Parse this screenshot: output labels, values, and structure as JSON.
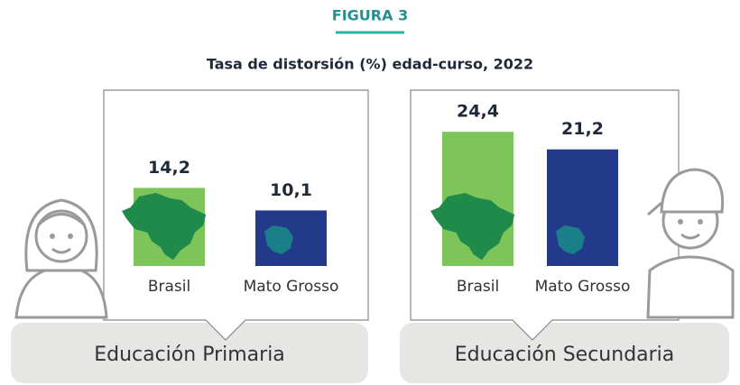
{
  "header": {
    "label": "FIGURA 3",
    "title": "Tasa de distorsión (%) edad-curso, 2022"
  },
  "chart_data": [
    {
      "type": "bar",
      "title": "Educación Primaria",
      "categories": [
        "Brasil",
        "Mato Grosso"
      ],
      "values": [
        14.2,
        10.1
      ],
      "value_labels": [
        "14,2",
        "10,1"
      ],
      "colors": [
        "#7dc55a",
        "#233a8b"
      ]
    },
    {
      "type": "bar",
      "title": "Educación Secundaria",
      "categories": [
        "Brasil",
        "Mato Grosso"
      ],
      "values": [
        24.4,
        21.2
      ],
      "value_labels": [
        "24,4",
        "21,2"
      ],
      "colors": [
        "#7dc55a",
        "#233a8b"
      ]
    }
  ]
}
